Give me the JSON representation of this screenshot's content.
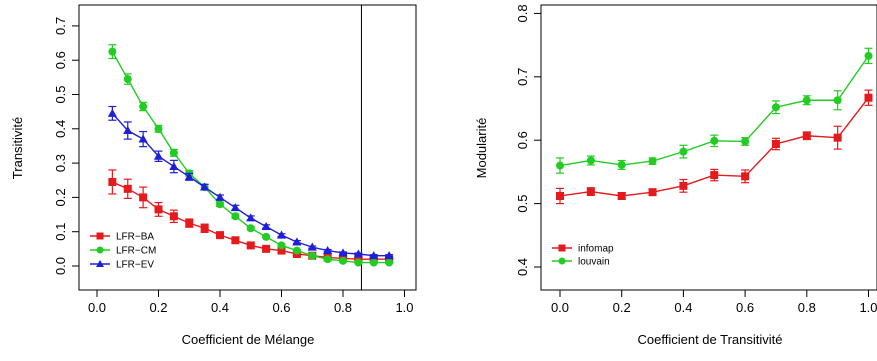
{
  "chart_data": [
    {
      "type": "line",
      "xlabel": "Coefficient de Mélange",
      "ylabel": "Transitivité",
      "xlim": [
        -0.06,
        1.06
      ],
      "ylim": [
        -0.03,
        0.72
      ],
      "xticks": [
        "0.0",
        "0.2",
        "0.4",
        "0.6",
        "0.8",
        "1.0"
      ],
      "yticks": [
        "0.0",
        "0.1",
        "0.2",
        "0.3",
        "0.4",
        "0.5",
        "0.6",
        "0.7"
      ],
      "vline": 0.86,
      "legend": "bottom-left",
      "x": [
        0.05,
        0.1,
        0.15,
        0.2,
        0.25,
        0.3,
        0.35,
        0.4,
        0.45,
        0.5,
        0.55,
        0.6,
        0.65,
        0.7,
        0.75,
        0.8,
        0.85,
        0.9,
        0.95
      ],
      "series": [
        {
          "name": "LFR−BA",
          "color": "#e41a1c",
          "marker": "square",
          "values": [
            0.245,
            0.225,
            0.2,
            0.165,
            0.145,
            0.125,
            0.11,
            0.09,
            0.075,
            0.06,
            0.05,
            0.045,
            0.035,
            0.03,
            0.025,
            0.022,
            0.02,
            0.02,
            0.02
          ],
          "err": [
            0.035,
            0.028,
            0.03,
            0.02,
            0.018,
            0.012,
            0.012,
            0.008,
            0.006,
            0.005,
            0.005,
            0.004,
            0.004,
            0.003,
            0.003,
            0.003,
            0.003,
            0.003,
            0.003
          ]
        },
        {
          "name": "LFR−CM",
          "color": "#22cc22",
          "marker": "circle",
          "values": [
            0.625,
            0.545,
            0.465,
            0.4,
            0.33,
            0.27,
            0.23,
            0.18,
            0.145,
            0.11,
            0.085,
            0.06,
            0.045,
            0.03,
            0.02,
            0.015,
            0.01,
            0.01,
            0.01
          ],
          "err": [
            0.02,
            0.015,
            0.012,
            0.01,
            0.01,
            0.008,
            0.008,
            0.006,
            0.006,
            0.005,
            0.004,
            0.004,
            0.003,
            0.003,
            0.003,
            0.002,
            0.002,
            0.002,
            0.002
          ]
        },
        {
          "name": "LFR−EV",
          "color": "#1f1fd6",
          "marker": "triangle",
          "values": [
            0.445,
            0.395,
            0.37,
            0.32,
            0.29,
            0.26,
            0.23,
            0.2,
            0.17,
            0.14,
            0.115,
            0.09,
            0.07,
            0.055,
            0.045,
            0.038,
            0.035,
            0.03,
            0.03
          ],
          "err": [
            0.02,
            0.025,
            0.022,
            0.015,
            0.018,
            0.01,
            0.008,
            0.007,
            0.007,
            0.006,
            0.005,
            0.004,
            0.004,
            0.003,
            0.003,
            0.003,
            0.003,
            0.003,
            0.003
          ]
        }
      ]
    },
    {
      "type": "line",
      "xlabel": "Coefficient de Transitivité",
      "ylabel": "Modularité",
      "xlim": [
        -0.04,
        1.04
      ],
      "ylim": [
        0.39,
        0.81
      ],
      "xticks": [
        "0.0",
        "0.2",
        "0.4",
        "0.6",
        "0.8",
        "1.0"
      ],
      "yticks": [
        "0.4",
        "0.5",
        "0.6",
        "0.7",
        "0.8"
      ],
      "legend": "bottom-left",
      "x": [
        0.0,
        0.1,
        0.2,
        0.3,
        0.4,
        0.5,
        0.6,
        0.7,
        0.8,
        0.9,
        1.0
      ],
      "series": [
        {
          "name": "infomap",
          "color": "#e41a1c",
          "marker": "square",
          "values": [
            0.512,
            0.519,
            0.512,
            0.518,
            0.528,
            0.545,
            0.543,
            0.594,
            0.607,
            0.604,
            0.667
          ],
          "err": [
            0.012,
            0.006,
            0.005,
            0.005,
            0.01,
            0.009,
            0.01,
            0.009,
            0.006,
            0.018,
            0.012
          ]
        },
        {
          "name": "louvain",
          "color": "#22cc22",
          "marker": "circle",
          "values": [
            0.56,
            0.568,
            0.561,
            0.567,
            0.582,
            0.599,
            0.598,
            0.652,
            0.663,
            0.663,
            0.733
          ],
          "err": [
            0.012,
            0.007,
            0.007,
            0.005,
            0.01,
            0.009,
            0.006,
            0.01,
            0.007,
            0.015,
            0.012
          ]
        }
      ]
    }
  ]
}
